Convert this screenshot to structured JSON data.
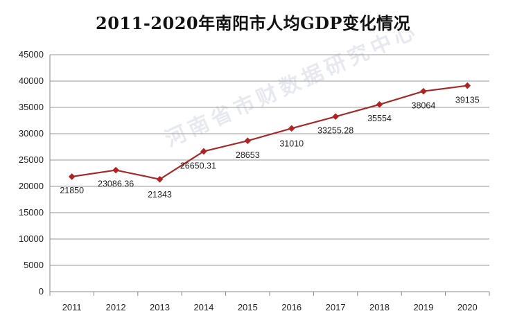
{
  "chart_data": {
    "type": "line",
    "title": "2011-2020年南阳市人均GDP变化情况",
    "xlabel": "",
    "ylabel": "",
    "categories": [
      "2011",
      "2012",
      "2013",
      "2014",
      "2015",
      "2016",
      "2017",
      "2018",
      "2019",
      "2020"
    ],
    "series": [
      {
        "values": [
          21850,
          23086.36,
          21343,
          26650.31,
          28653,
          31010,
          33255.28,
          35554,
          38064,
          39135
        ],
        "data_labels": [
          "21850",
          "23086.36",
          "21343",
          "26650.31",
          "28653",
          "31010",
          "33255.28",
          "35554",
          "38064",
          "39135"
        ]
      }
    ],
    "ylim": [
      0,
      45000
    ],
    "yticks": [
      "0",
      "5000",
      "10000",
      "15000",
      "20000",
      "25000",
      "30000",
      "35000",
      "40000",
      "45000"
    ],
    "grid": true,
    "legend": "none",
    "colors": {
      "line": "#a52a2a",
      "marker": "#b22222",
      "grid": "#9a9a9a"
    },
    "watermark": "河南省市财数据研究中心"
  }
}
